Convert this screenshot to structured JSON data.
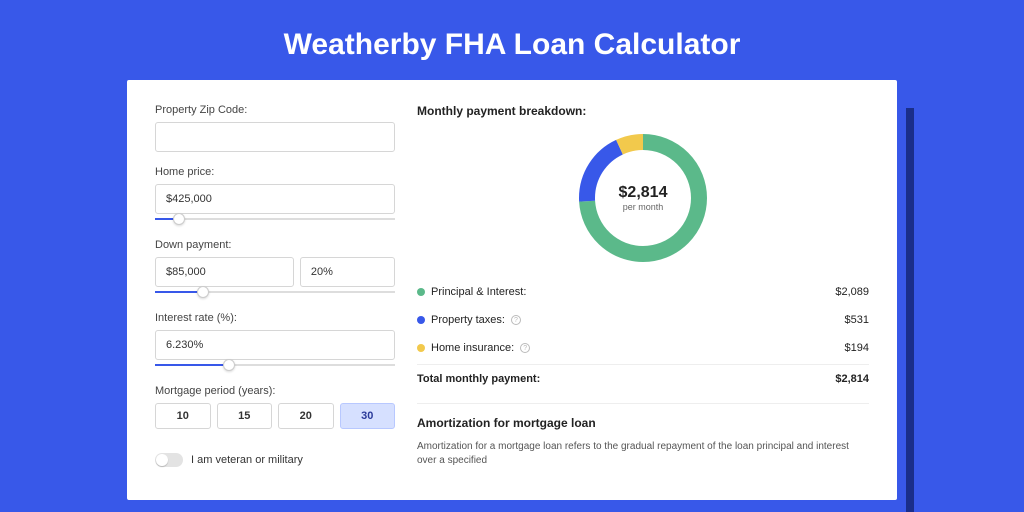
{
  "page": {
    "title": "Weatherby FHA Loan Calculator",
    "background_color": "#3858e9",
    "shadow_color": "#1a2e8a"
  },
  "form": {
    "zip": {
      "label": "Property Zip Code:",
      "value": ""
    },
    "home_price": {
      "label": "Home price:",
      "value": "$425,000",
      "slider_pct": 10
    },
    "down_payment": {
      "label": "Down payment:",
      "amount": "$85,000",
      "percent": "20%",
      "slider_pct": 20
    },
    "interest": {
      "label": "Interest rate (%):",
      "value": "6.230%",
      "slider_pct": 31
    },
    "period": {
      "label": "Mortgage period (years):",
      "options": [
        "10",
        "15",
        "20",
        "30"
      ],
      "selected": "30"
    },
    "veteran": {
      "label": "I am veteran or military",
      "checked": false
    }
  },
  "breakdown": {
    "title": "Monthly payment breakdown:",
    "donut": {
      "amount": "$2,814",
      "subtitle": "per month",
      "slices": [
        {
          "color": "#5bb98a",
          "pct": 74
        },
        {
          "color": "#3858e9",
          "pct": 19
        },
        {
          "color": "#f2c94c",
          "pct": 7
        }
      ],
      "radius": 56,
      "stroke": 16
    },
    "items": [
      {
        "label": "Principal & Interest:",
        "color": "#5bb98a",
        "value": "$2,089",
        "info": false
      },
      {
        "label": "Property taxes:",
        "color": "#3858e9",
        "value": "$531",
        "info": true
      },
      {
        "label": "Home insurance:",
        "color": "#f2c94c",
        "value": "$194",
        "info": true
      }
    ],
    "total": {
      "label": "Total monthly payment:",
      "value": "$2,814"
    }
  },
  "amortization": {
    "title": "Amortization for mortgage loan",
    "text": "Amortization for a mortgage loan refers to the gradual repayment of the loan principal and interest over a specified"
  }
}
